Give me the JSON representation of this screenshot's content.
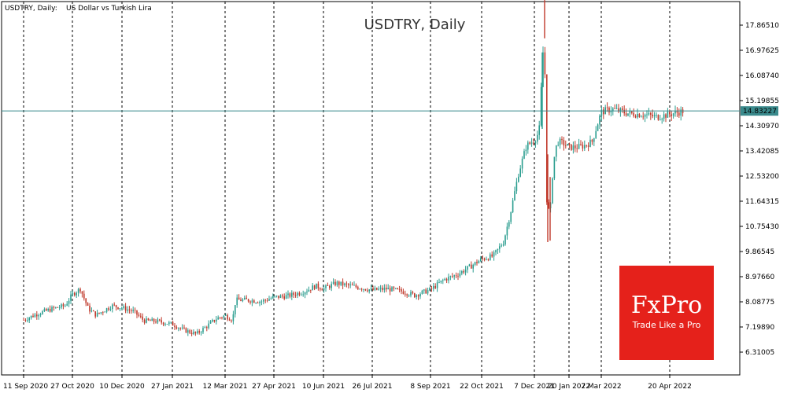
{
  "header": {
    "symbol_line": "USDTRY, Daily:",
    "description": "US Dollar vs Turkish Lira"
  },
  "chart_title": "USDTRY, Daily",
  "current_price_label": "14.83227",
  "logo": {
    "brand": "FxPro",
    "tagline": "Trade Like a Pro",
    "color": "#e5211b"
  },
  "colors": {
    "up": "#2a9d8f",
    "down": "#c0392b",
    "price_line": "#3a8a8c",
    "grid": "#000000"
  },
  "chart_data": {
    "type": "candlestick",
    "title": "USDTRY, Daily",
    "x_tick_labels": [
      "11 Sep 2020",
      "27 Oct 2020",
      "10 Dec 2020",
      "27 Jan 2021",
      "12 Mar 2021",
      "27 Apr 2021",
      "10 Jun 2021",
      "26 Jul 2021",
      "8 Sep 2021",
      "22 Oct 2021",
      "7 Dec 2021",
      "20 Jan 2022",
      "7 Mar 2022",
      "20 Apr 2022"
    ],
    "y_tick_labels": [
      "17.86510",
      "16.97625",
      "16.08740",
      "15.19855",
      "14.30970",
      "13.42085",
      "12.53200",
      "11.64315",
      "10.75430",
      "9.86545",
      "8.97660",
      "8.08775",
      "7.19890",
      "6.31005"
    ],
    "ylim": [
      5.93,
      18.9
    ],
    "current_price": 14.83227,
    "grid": "vertical dashed",
    "series": [
      {
        "date": "2020-09-11",
        "value": 7.45
      },
      {
        "date": "2020-09-25",
        "value": 7.68
      },
      {
        "date": "2020-10-09",
        "value": 7.85
      },
      {
        "date": "2020-10-20",
        "value": 7.95
      },
      {
        "date": "2020-10-27",
        "value": 8.35
      },
      {
        "date": "2020-11-03",
        "value": 8.55
      },
      {
        "date": "2020-11-10",
        "value": 7.85
      },
      {
        "date": "2020-11-17",
        "value": 7.62
      },
      {
        "date": "2020-11-24",
        "value": 7.78
      },
      {
        "date": "2020-12-01",
        "value": 7.95
      },
      {
        "date": "2020-12-10",
        "value": 7.88
      },
      {
        "date": "2020-12-21",
        "value": 7.75
      },
      {
        "date": "2020-12-31",
        "value": 7.42
      },
      {
        "date": "2021-01-12",
        "value": 7.4
      },
      {
        "date": "2021-01-27",
        "value": 7.3
      },
      {
        "date": "2021-02-05",
        "value": 7.1
      },
      {
        "date": "2021-02-16",
        "value": 6.95
      },
      {
        "date": "2021-02-24",
        "value": 7.2
      },
      {
        "date": "2021-03-05",
        "value": 7.5
      },
      {
        "date": "2021-03-12",
        "value": 7.6
      },
      {
        "date": "2021-03-19",
        "value": 7.45
      },
      {
        "date": "2021-03-22",
        "value": 8.15
      },
      {
        "date": "2021-04-02",
        "value": 8.15
      },
      {
        "date": "2021-04-15",
        "value": 8.1
      },
      {
        "date": "2021-04-27",
        "value": 8.25
      },
      {
        "date": "2021-05-10",
        "value": 8.3
      },
      {
        "date": "2021-05-24",
        "value": 8.45
      },
      {
        "date": "2021-06-03",
        "value": 8.65
      },
      {
        "date": "2021-06-10",
        "value": 8.55
      },
      {
        "date": "2021-06-22",
        "value": 8.75
      },
      {
        "date": "2021-07-05",
        "value": 8.65
      },
      {
        "date": "2021-07-16",
        "value": 8.58
      },
      {
        "date": "2021-07-26",
        "value": 8.5
      },
      {
        "date": "2021-08-06",
        "value": 8.55
      },
      {
        "date": "2021-08-18",
        "value": 8.45
      },
      {
        "date": "2021-08-27",
        "value": 8.32
      },
      {
        "date": "2021-09-08",
        "value": 8.52
      },
      {
        "date": "2021-09-20",
        "value": 8.88
      },
      {
        "date": "2021-10-01",
        "value": 9.05
      },
      {
        "date": "2021-10-11",
        "value": 9.3
      },
      {
        "date": "2021-10-22",
        "value": 9.6
      },
      {
        "date": "2021-11-01",
        "value": 9.7
      },
      {
        "date": "2021-11-10",
        "value": 10.2
      },
      {
        "date": "2021-11-16",
        "value": 11.2
      },
      {
        "date": "2021-11-23",
        "value": 12.6
      },
      {
        "date": "2021-11-30",
        "value": 13.6
      },
      {
        "date": "2021-12-07",
        "value": 13.8
      },
      {
        "date": "2021-12-13",
        "value": 14.1
      },
      {
        "date": "2021-12-17",
        "value": 16.4
      },
      {
        "date": "2021-12-20",
        "value": 17.9
      },
      {
        "date": "2021-12-21",
        "value": 13.5
      },
      {
        "date": "2021-12-23",
        "value": 11.5
      },
      {
        "date": "2021-12-27",
        "value": 11.2
      },
      {
        "date": "2021-12-31",
        "value": 13.0
      },
      {
        "date": "2022-01-05",
        "value": 13.75
      },
      {
        "date": "2022-01-12",
        "value": 13.7
      },
      {
        "date": "2022-01-20",
        "value": 13.55
      },
      {
        "date": "2022-01-31",
        "value": 13.55
      },
      {
        "date": "2022-02-10",
        "value": 13.6
      },
      {
        "date": "2022-02-22",
        "value": 13.75
      },
      {
        "date": "2022-03-02",
        "value": 14.4
      },
      {
        "date": "2022-03-07",
        "value": 14.8
      },
      {
        "date": "2022-03-14",
        "value": 14.9
      },
      {
        "date": "2022-03-24",
        "value": 14.75
      },
      {
        "date": "2022-04-04",
        "value": 14.7
      },
      {
        "date": "2022-04-12",
        "value": 14.62
      },
      {
        "date": "2022-04-20",
        "value": 14.72
      },
      {
        "date": "2022-04-29",
        "value": 14.83
      }
    ]
  }
}
